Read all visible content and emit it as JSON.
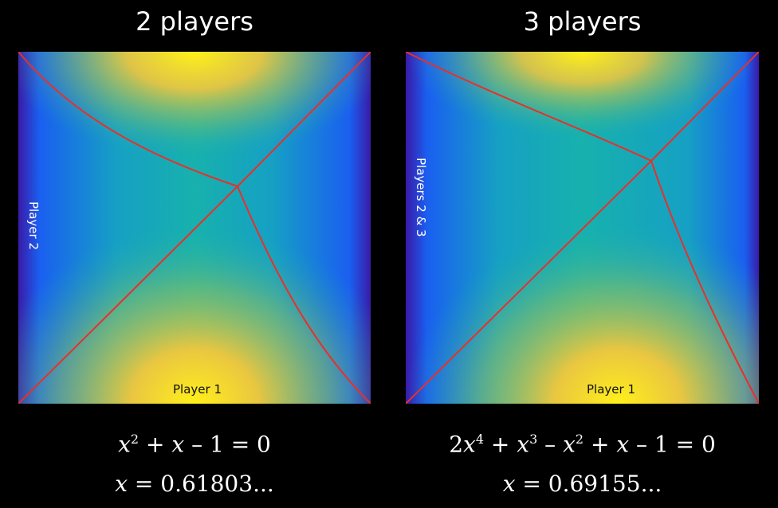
{
  "panels": [
    {
      "title": "2 players",
      "bottom_label": "Player 1",
      "side_label": "Player 2",
      "equation": [
        "x",
        "2",
        " + ",
        "x",
        " – 1 = 0"
      ],
      "solution_var": "x",
      "solution_value": " = 0.61803..."
    },
    {
      "title": "3 players",
      "bottom_label": "Player 1",
      "side_label": "Players 2 & 3",
      "equation": [
        "2",
        "x",
        "4",
        " + ",
        "x",
        "3",
        " – ",
        "x",
        "2",
        " + ",
        "x",
        " – 1 = 0"
      ],
      "solution_var": "x",
      "solution_value": " = 0.69155..."
    }
  ],
  "colors": {
    "background": "#000000",
    "boundary": "#e8302a",
    "yellow": "#fff01a",
    "teal": "#17b1ad",
    "blue": "#1a5ff0",
    "indigo": "#3a1aa8"
  }
}
